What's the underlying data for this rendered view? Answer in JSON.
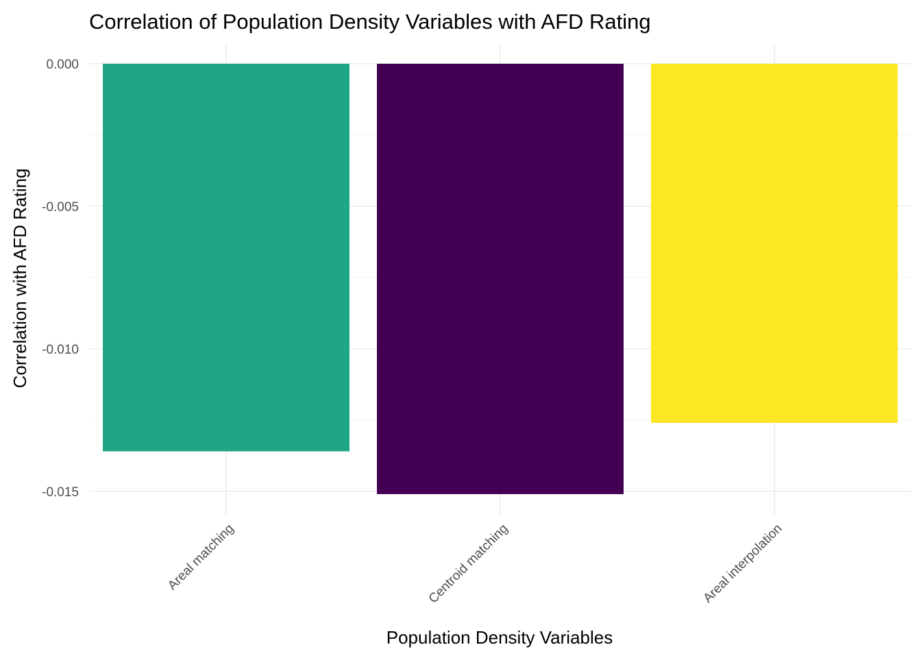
{
  "chart_data": {
    "type": "bar",
    "title": "Correlation of Population Density Variables with AFD Rating",
    "xlabel": "Population Density Variables",
    "ylabel": "Correlation with AFD Rating",
    "categories": [
      "Areal matching",
      "Centroid matching",
      "Areal interpolation"
    ],
    "values": [
      -0.0136,
      -0.0151,
      -0.0126
    ],
    "bar_colors": [
      "#21A685",
      "#440154",
      "#FDE725"
    ],
    "ylim": [
      -0.0154,
      0.0
    ],
    "yticks": [
      0.0,
      -0.005,
      -0.01,
      -0.015
    ],
    "ytick_labels": [
      "0.000",
      "-0.005",
      "-0.010",
      "-0.015"
    ],
    "grid": true,
    "legend": "none"
  }
}
